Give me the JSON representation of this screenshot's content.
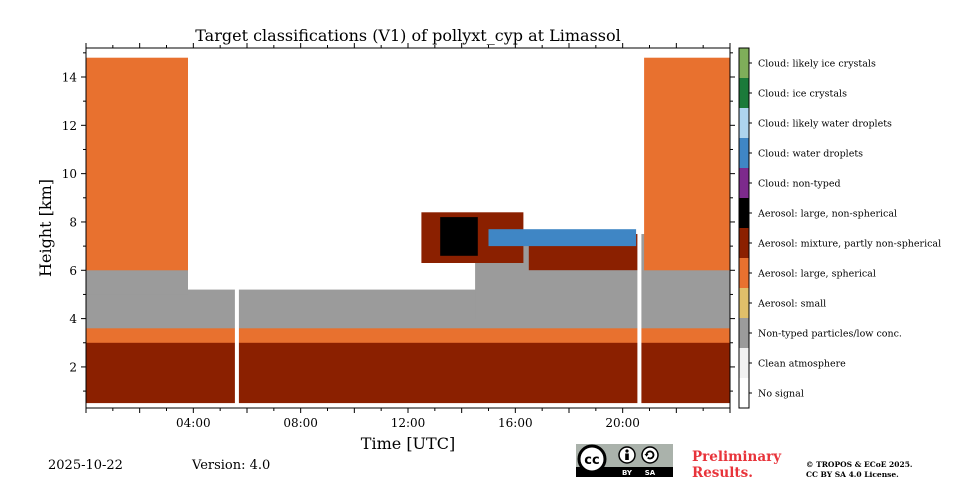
{
  "chart_data": {
    "type": "heatmap",
    "title": "Target classifications (V1) of pollyxt_cyp at Limassol",
    "xlabel": "Time [UTC]",
    "ylabel": "Height [km]",
    "xlim_hours": [
      0,
      24
    ],
    "ylim_km": [
      0.3,
      15.2
    ],
    "x_ticks": [
      {
        "hour": 4,
        "label": "04:00"
      },
      {
        "hour": 8,
        "label": "08:00"
      },
      {
        "hour": 12,
        "label": "12:00"
      },
      {
        "hour": 16,
        "label": "16:00"
      },
      {
        "hour": 20,
        "label": "20:00"
      }
    ],
    "y_ticks": [
      {
        "km": 2,
        "label": "2"
      },
      {
        "km": 4,
        "label": "4"
      },
      {
        "km": 6,
        "label": "6"
      },
      {
        "km": 8,
        "label": "8"
      },
      {
        "km": 10,
        "label": "10"
      },
      {
        "km": 12,
        "label": "12"
      },
      {
        "km": 14,
        "label": "14"
      }
    ],
    "data_gaps_hours": [
      [
        5.55,
        5.7
      ],
      [
        20.55,
        20.7
      ]
    ],
    "regions": [
      {
        "class": "Aerosol: mixture, partly non-spherical",
        "t0": 0,
        "t1": 24,
        "h0": 0.5,
        "h1": 3.1
      },
      {
        "class": "Aerosol: large, spherical",
        "t0": 0,
        "t1": 24,
        "h0": 3.0,
        "h1": 3.7
      },
      {
        "class": "Non-typed particles/low conc.",
        "t0": 0,
        "t1": 24,
        "h0": 3.6,
        "h1": 5.2
      },
      {
        "class": "Non-typed particles/low conc.",
        "t0": 0,
        "t1": 3.8,
        "h0": 5.0,
        "h1": 10.0
      },
      {
        "class": "Aerosol: large, spherical",
        "t0": 0,
        "t1": 3.8,
        "h0": 6.0,
        "h1": 14.8
      },
      {
        "class": "Non-typed particles/low conc.",
        "t0": 14.5,
        "t1": 24,
        "h0": 4.0,
        "h1": 7.5
      },
      {
        "class": "Aerosol: large, spherical",
        "t0": 20.8,
        "t1": 24,
        "h0": 6.0,
        "h1": 14.8
      },
      {
        "class": "Aerosol: mixture, partly non-spherical",
        "t0": 12.5,
        "t1": 16.3,
        "h0": 6.3,
        "h1": 8.4
      },
      {
        "class": "Aerosol: large, non-spherical",
        "t0": 13.2,
        "t1": 14.6,
        "h0": 6.6,
        "h1": 8.2
      },
      {
        "class": "Aerosol: mixture, partly non-spherical",
        "t0": 16.5,
        "t1": 20.6,
        "h0": 6.0,
        "h1": 7.5
      },
      {
        "class": "Cloud: water droplets",
        "t0": 15.0,
        "t1": 20.5,
        "h0": 7.0,
        "h1": 7.7
      }
    ],
    "legend": [
      {
        "label": "Cloud: likely ice crystals",
        "color": "#7fae5a"
      },
      {
        "label": "Cloud: ice crystals",
        "color": "#1b7a3a"
      },
      {
        "label": "Cloud: likely water droplets",
        "color": "#aed4ef"
      },
      {
        "label": "Cloud: water droplets",
        "color": "#3f86c5"
      },
      {
        "label": "Cloud: non-typed",
        "color": "#7d2a8c"
      },
      {
        "label": "Aerosol: large, non-spherical",
        "color": "#000000"
      },
      {
        "label": "Aerosol: mixture, partly non-spherical",
        "color": "#8b2000"
      },
      {
        "label": "Aerosol: large, spherical",
        "color": "#e8712f"
      },
      {
        "label": "Aerosol: small",
        "color": "#e0bf6a"
      },
      {
        "label": "Non-typed particles/low conc.",
        "color": "#9b9b9b"
      },
      {
        "label": "Clean atmosphere",
        "color": "#f2f2f2"
      },
      {
        "label": "No signal",
        "color": "#ffffff"
      }
    ]
  },
  "footer": {
    "date": "2025-10-22",
    "version": "Version: 4.0",
    "preliminary_line1": "Preliminary",
    "preliminary_line2": "Results.",
    "copyright_line1": "© TROPOS & ECoE 2025.",
    "copyright_line2": "CC BY SA 4.0 License.",
    "cc_badge": {
      "cc": "cc",
      "by": "BY",
      "sa": "SA"
    }
  }
}
